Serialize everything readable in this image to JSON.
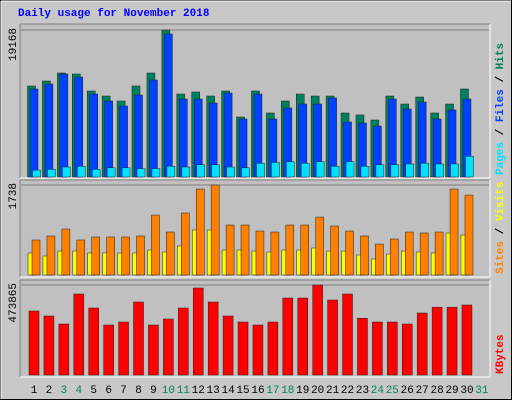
{
  "chart_data": [
    {
      "type": "bar",
      "title": "Daily usage for November 2018",
      "ylim": [
        0,
        19168
      ],
      "yticks": [
        19168
      ],
      "grid": true,
      "legend_separator": " / ",
      "series": [
        {
          "name": "Hits",
          "color": "#00805c",
          "values": [
            11866,
            12518,
            13562,
            13431,
            11214,
            10562,
            9910,
            11866,
            13562,
            19168,
            10823,
            11084,
            10562,
            11214,
            7824,
            11214,
            8346,
            9910,
            10823,
            10562,
            10562,
            8346,
            8085,
            7433,
            10562,
            9519,
            10432,
            8346,
            9519,
            11475,
            null
          ]
        },
        {
          "name": "Files",
          "color": "#0040ff",
          "values": [
            11475,
            12127,
            13431,
            13040,
            10823,
            9910,
            9258,
            10693,
            12649,
            18647,
            10171,
            10171,
            9650,
            10954,
            7563,
            10823,
            7563,
            8998,
            9519,
            9519,
            10302,
            7172,
            7042,
            6650,
            10171,
            8867,
            9780,
            7563,
            8737,
            10171,
            null
          ]
        },
        {
          "name": "Pages",
          "color": "#00e0ff",
          "values": [
            900,
            1000,
            1300,
            1400,
            1000,
            1200,
            1200,
            1100,
            1100,
            1400,
            1300,
            1600,
            1600,
            1300,
            1200,
            1800,
            1900,
            2000,
            1800,
            2000,
            1400,
            2000,
            1400,
            1600,
            1600,
            1700,
            1800,
            1700,
            1700,
            2700,
            null
          ]
        }
      ]
    },
    {
      "type": "bar",
      "ylim": [
        0,
        1738
      ],
      "yticks": [
        1738
      ],
      "grid": true,
      "legend_separator": " / ",
      "series": [
        {
          "name": "Visits",
          "color": "#ffff00",
          "values": [
            425,
            367,
            463,
            463,
            425,
            425,
            425,
            425,
            482,
            444,
            560,
            869,
            869,
            482,
            482,
            463,
            444,
            482,
            482,
            521,
            463,
            463,
            386,
            309,
            405,
            463,
            444,
            425,
            811,
            772,
            null
          ]
        },
        {
          "name": "Sites",
          "color": "#ff8000",
          "values": [
            676,
            753,
            888,
            676,
            734,
            734,
            734,
            753,
            1158,
            830,
            1197,
            1660,
            1738,
            965,
            965,
            849,
            830,
            965,
            965,
            1119,
            946,
            849,
            753,
            598,
            695,
            830,
            811,
            830,
            1660,
            1544,
            null
          ]
        }
      ]
    },
    {
      "type": "bar",
      "ylim": [
        0,
        473865
      ],
      "yticks": [
        473865
      ],
      "grid": true,
      "categories": [
        "1",
        "2",
        "3",
        "4",
        "5",
        "6",
        "7",
        "8",
        "9",
        "10",
        "11",
        "12",
        "13",
        "14",
        "15",
        "16",
        "17",
        "18",
        "19",
        "20",
        "21",
        "22",
        "23",
        "24",
        "25",
        "26",
        "27",
        "28",
        "29",
        "30",
        "31"
      ],
      "category_color": "#000000",
      "weekend_color": "#00805c",
      "weekend_indices": [
        2,
        3,
        9,
        10,
        16,
        17,
        23,
        24,
        30
      ],
      "series": [
        {
          "name": "KBytes",
          "color": "#ff0000",
          "values": [
            336960,
            310635,
            268515,
            426465,
            352755,
            263250,
            279045,
            384345,
            263250,
            294840,
            352755,
            458055,
            384345,
            310635,
            279045,
            263250,
            279045,
            405405,
            405405,
            473865,
            394875,
            426465,
            299000,
            279045,
            279045,
            268515,
            326430,
            357000,
            357000,
            368550,
            null
          ]
        }
      ]
    }
  ]
}
